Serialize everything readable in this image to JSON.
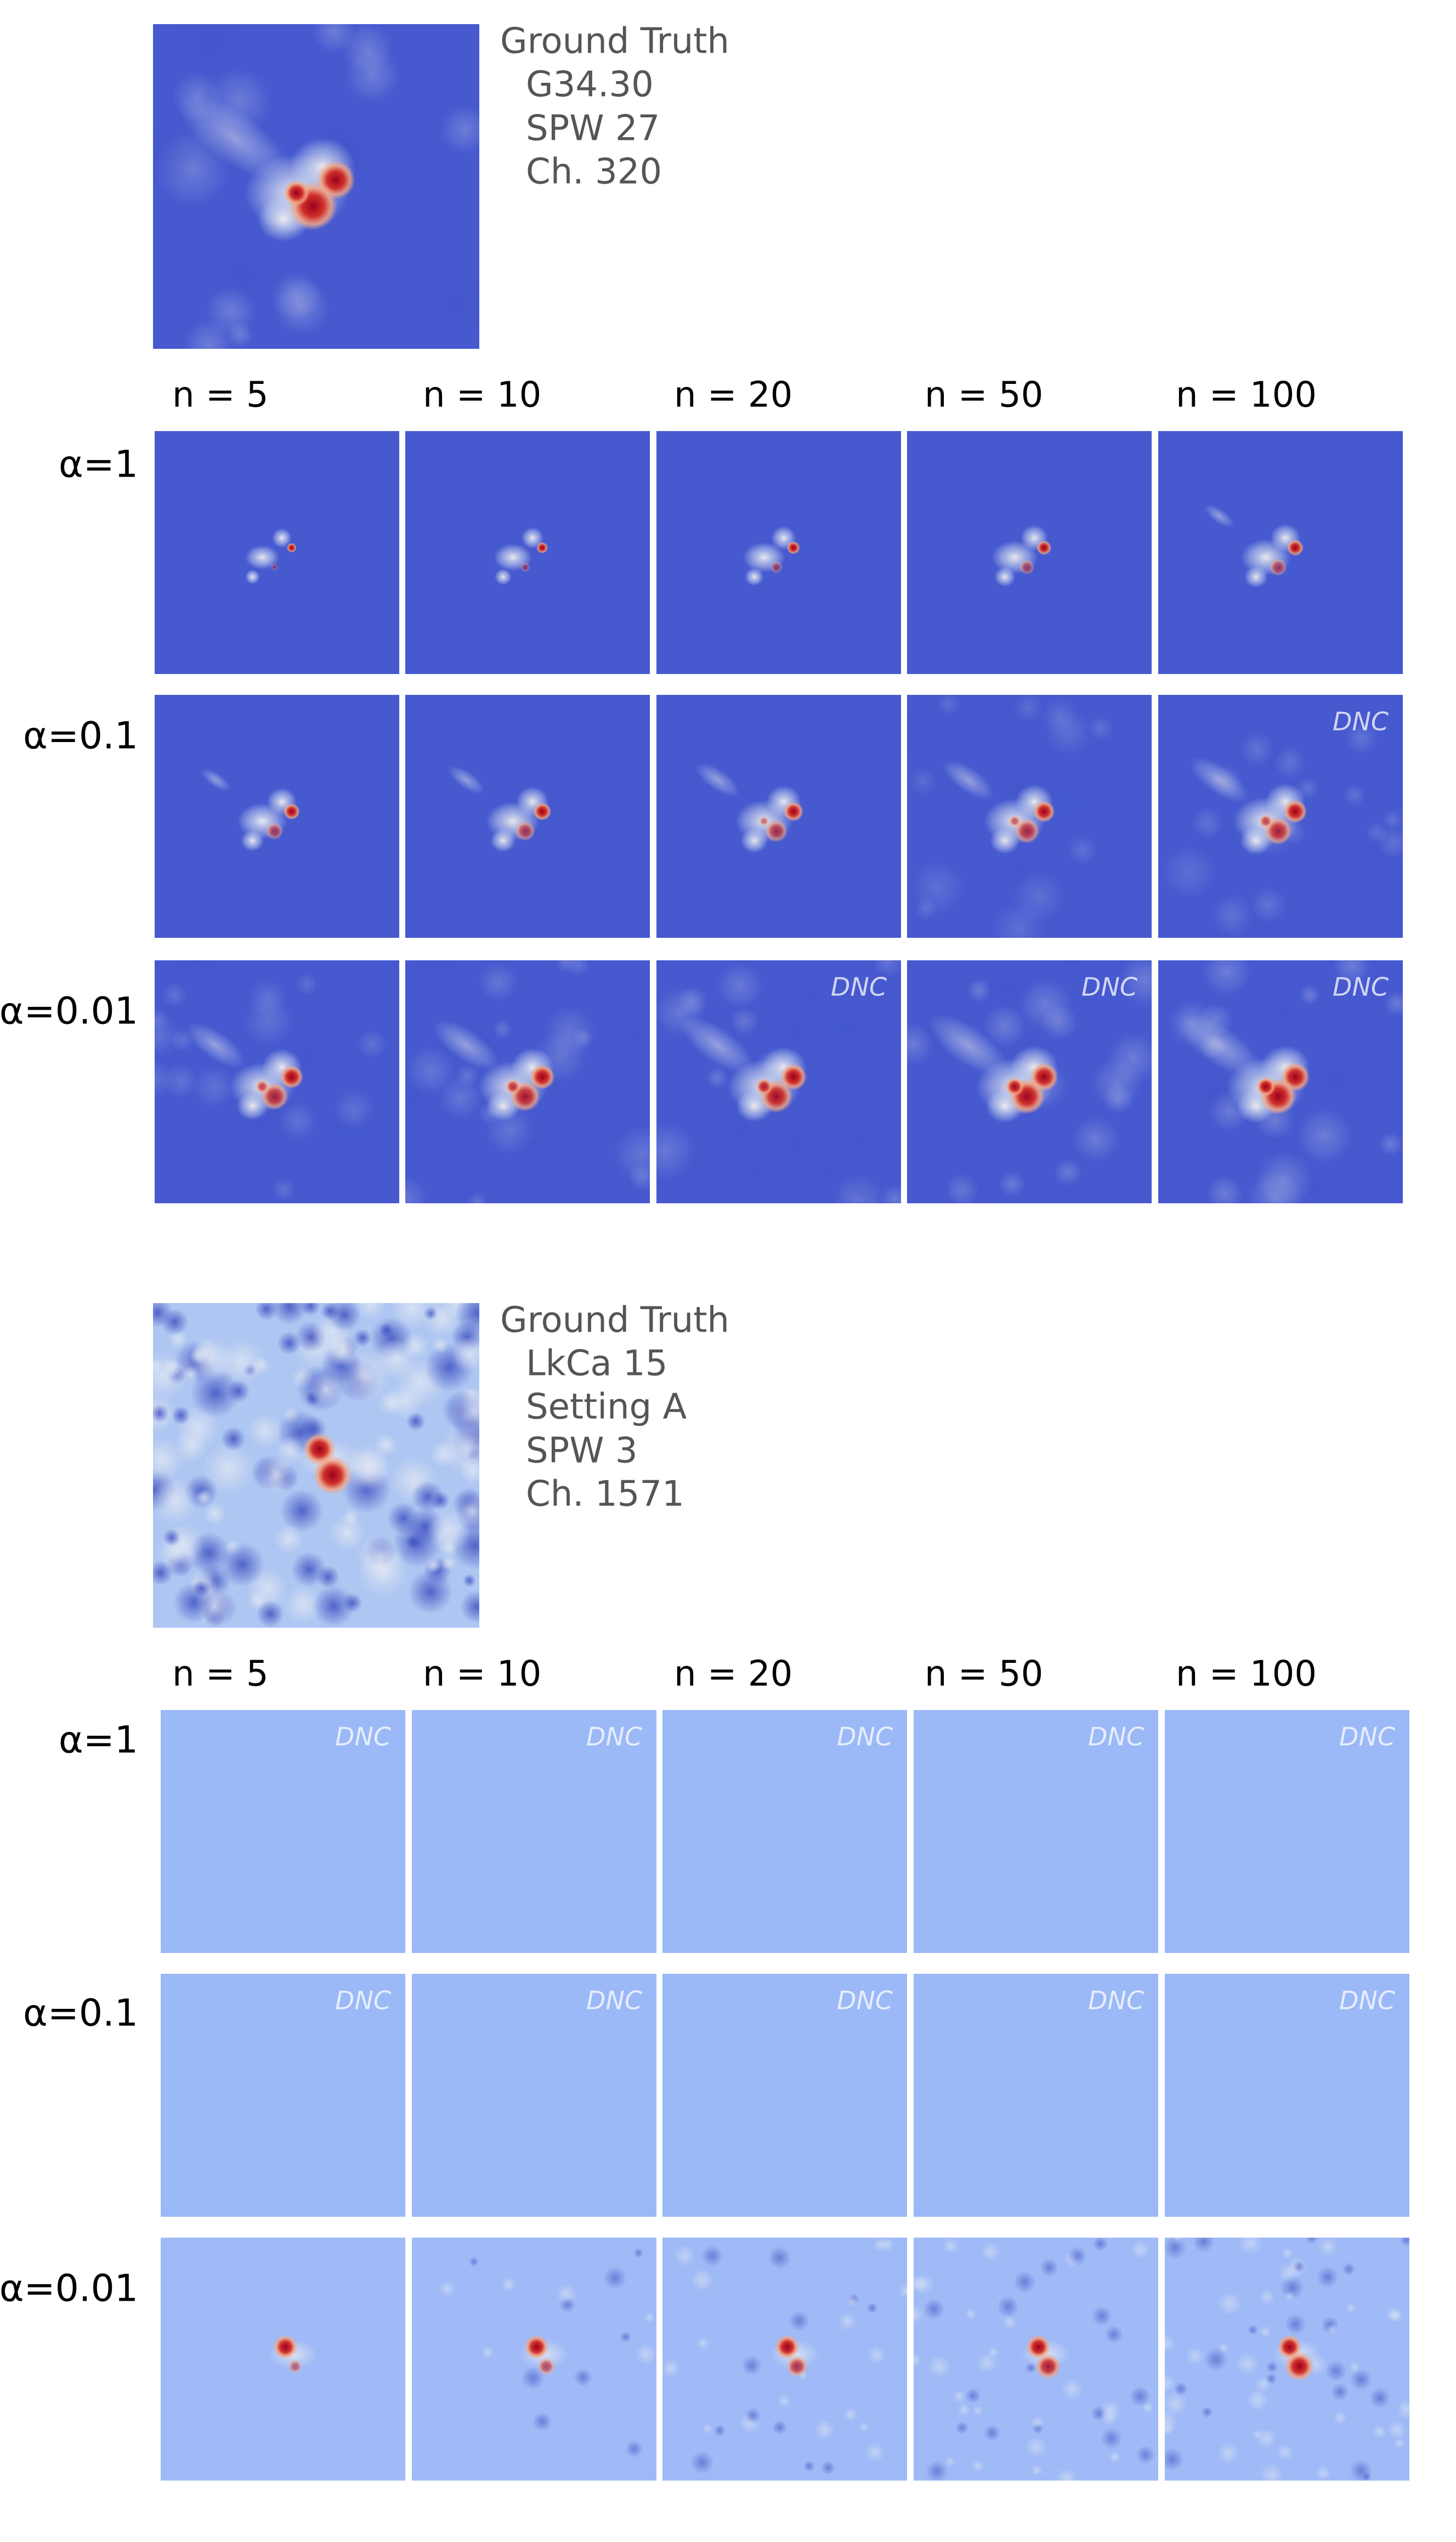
{
  "panels": [
    {
      "ground_truth": [
        "Ground Truth",
        "G34.30",
        "SPW 27",
        "Ch. 320"
      ],
      "columns": [
        "n = 5",
        "n = 10",
        "n = 20",
        "n = 50",
        "n = 100"
      ],
      "rows": [
        {
          "label": "α=1",
          "notes": [
            null,
            null,
            null,
            null,
            null
          ]
        },
        {
          "label": "α=0.1",
          "notes": [
            null,
            null,
            null,
            null,
            "DNC"
          ]
        },
        {
          "label": "α=0.01",
          "notes": [
            null,
            null,
            "DNC",
            "DNC",
            "DNC"
          ]
        }
      ]
    },
    {
      "ground_truth": [
        "Ground Truth",
        "LkCa 15",
        "Setting A",
        "SPW 3",
        "Ch. 1571"
      ],
      "columns": [
        "n = 5",
        "n = 10",
        "n = 20",
        "n = 50",
        "n = 100"
      ],
      "rows": [
        {
          "label": "α=1",
          "notes": [
            "DNC",
            "DNC",
            "DNC",
            "DNC",
            "DNC"
          ]
        },
        {
          "label": "α=0.1",
          "notes": [
            "DNC",
            "DNC",
            "DNC",
            "DNC",
            "DNC"
          ]
        },
        {
          "label": "α=0.01",
          "notes": [
            null,
            null,
            null,
            null,
            null
          ]
        }
      ]
    }
  ]
}
